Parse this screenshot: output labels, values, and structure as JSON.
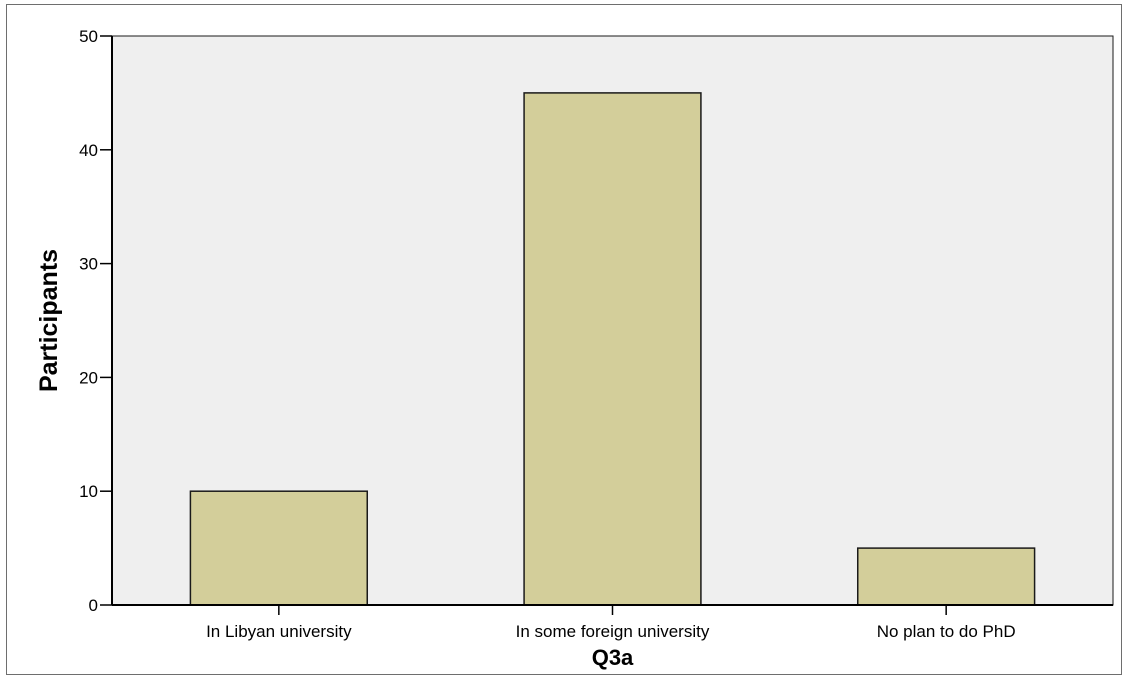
{
  "chart_data": {
    "type": "bar",
    "categories": [
      "In Libyan university",
      "In some foreign university",
      "No plan to do PhD"
    ],
    "values": [
      10,
      45,
      5
    ],
    "title": "",
    "xlabel": "Q3a",
    "ylabel": "Participants",
    "ylim": [
      0,
      50
    ],
    "yticks": [
      0,
      10,
      20,
      30,
      40,
      50
    ],
    "grid": false,
    "colors": {
      "bar_fill": "#d3ce9a",
      "bar_stroke": "#1a1a1a",
      "plot_background": "#efefef",
      "axis": "#000000"
    }
  }
}
